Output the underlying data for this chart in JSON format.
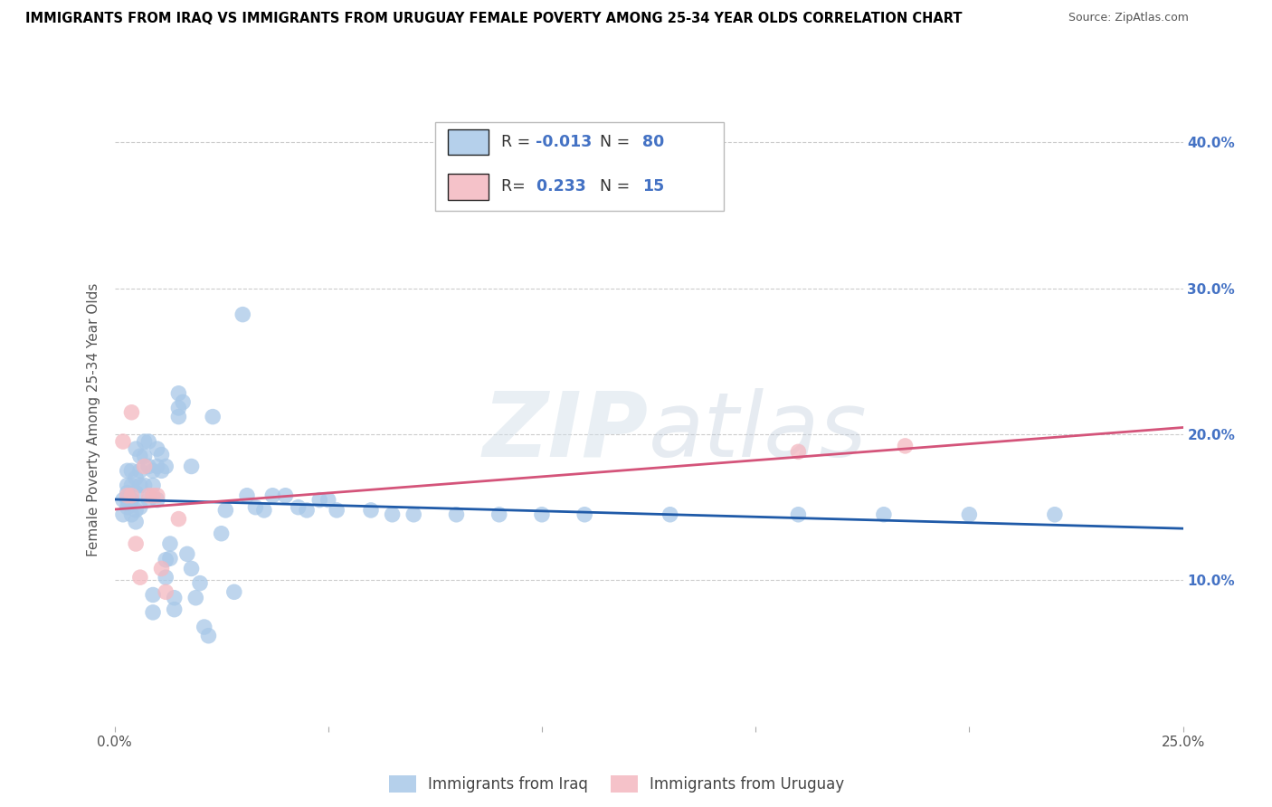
{
  "title": "IMMIGRANTS FROM IRAQ VS IMMIGRANTS FROM URUGUAY FEMALE POVERTY AMONG 25-34 YEAR OLDS CORRELATION CHART",
  "source": "Source: ZipAtlas.com",
  "ylabel": "Female Poverty Among 25-34 Year Olds",
  "xlim": [
    0.0,
    0.25
  ],
  "ylim": [
    0.0,
    0.42
  ],
  "xticks": [
    0.0,
    0.05,
    0.1,
    0.15,
    0.2,
    0.25
  ],
  "xticklabels": [
    "0.0%",
    "",
    "",
    "",
    "",
    "25.0%"
  ],
  "yticks": [
    0.0,
    0.1,
    0.2,
    0.3,
    0.4
  ],
  "yticklabels_right": [
    "",
    "10.0%",
    "20.0%",
    "30.0%",
    "40.0%"
  ],
  "iraq_color": "#a8c8e8",
  "uruguay_color": "#f4b8c0",
  "iraq_R": -0.013,
  "iraq_N": 80,
  "uruguay_R": 0.233,
  "uruguay_N": 15,
  "watermark": "ZIPatlas",
  "iraq_x": [
    0.002,
    0.002,
    0.003,
    0.003,
    0.003,
    0.003,
    0.003,
    0.004,
    0.004,
    0.004,
    0.004,
    0.005,
    0.005,
    0.005,
    0.005,
    0.005,
    0.006,
    0.006,
    0.006,
    0.006,
    0.007,
    0.007,
    0.007,
    0.008,
    0.008,
    0.008,
    0.009,
    0.009,
    0.009,
    0.009,
    0.01,
    0.01,
    0.01,
    0.011,
    0.011,
    0.012,
    0.012,
    0.012,
    0.013,
    0.013,
    0.014,
    0.014,
    0.015,
    0.015,
    0.015,
    0.016,
    0.017,
    0.018,
    0.018,
    0.019,
    0.02,
    0.021,
    0.022,
    0.023,
    0.025,
    0.026,
    0.028,
    0.03,
    0.031,
    0.033,
    0.035,
    0.037,
    0.04,
    0.043,
    0.045,
    0.048,
    0.05,
    0.052,
    0.06,
    0.065,
    0.07,
    0.08,
    0.09,
    0.1,
    0.11,
    0.13,
    0.16,
    0.18,
    0.2,
    0.22
  ],
  "iraq_y": [
    0.155,
    0.145,
    0.175,
    0.16,
    0.15,
    0.165,
    0.155,
    0.175,
    0.165,
    0.155,
    0.145,
    0.19,
    0.17,
    0.16,
    0.148,
    0.14,
    0.185,
    0.175,
    0.165,
    0.15,
    0.195,
    0.185,
    0.165,
    0.195,
    0.178,
    0.155,
    0.09,
    0.078,
    0.175,
    0.165,
    0.19,
    0.178,
    0.155,
    0.186,
    0.175,
    0.114,
    0.102,
    0.178,
    0.125,
    0.115,
    0.088,
    0.08,
    0.228,
    0.218,
    0.212,
    0.222,
    0.118,
    0.108,
    0.178,
    0.088,
    0.098,
    0.068,
    0.062,
    0.212,
    0.132,
    0.148,
    0.092,
    0.282,
    0.158,
    0.15,
    0.148,
    0.158,
    0.158,
    0.15,
    0.148,
    0.155,
    0.155,
    0.148,
    0.148,
    0.145,
    0.145,
    0.145,
    0.145,
    0.145,
    0.145,
    0.145,
    0.145,
    0.145,
    0.145,
    0.145
  ],
  "uruguay_x": [
    0.002,
    0.003,
    0.004,
    0.004,
    0.005,
    0.006,
    0.007,
    0.008,
    0.009,
    0.01,
    0.011,
    0.012,
    0.015,
    0.16,
    0.185
  ],
  "uruguay_y": [
    0.195,
    0.158,
    0.215,
    0.158,
    0.125,
    0.102,
    0.178,
    0.158,
    0.158,
    0.158,
    0.108,
    0.092,
    0.142,
    0.188,
    0.192
  ],
  "background_color": "#ffffff",
  "grid_color": "#cccccc",
  "title_color": "#000000",
  "axis_label_color": "#555555",
  "tick_color": "#4472c4",
  "iraq_line_color": "#1f5aa8",
  "uruguay_line_color": "#d4547a"
}
